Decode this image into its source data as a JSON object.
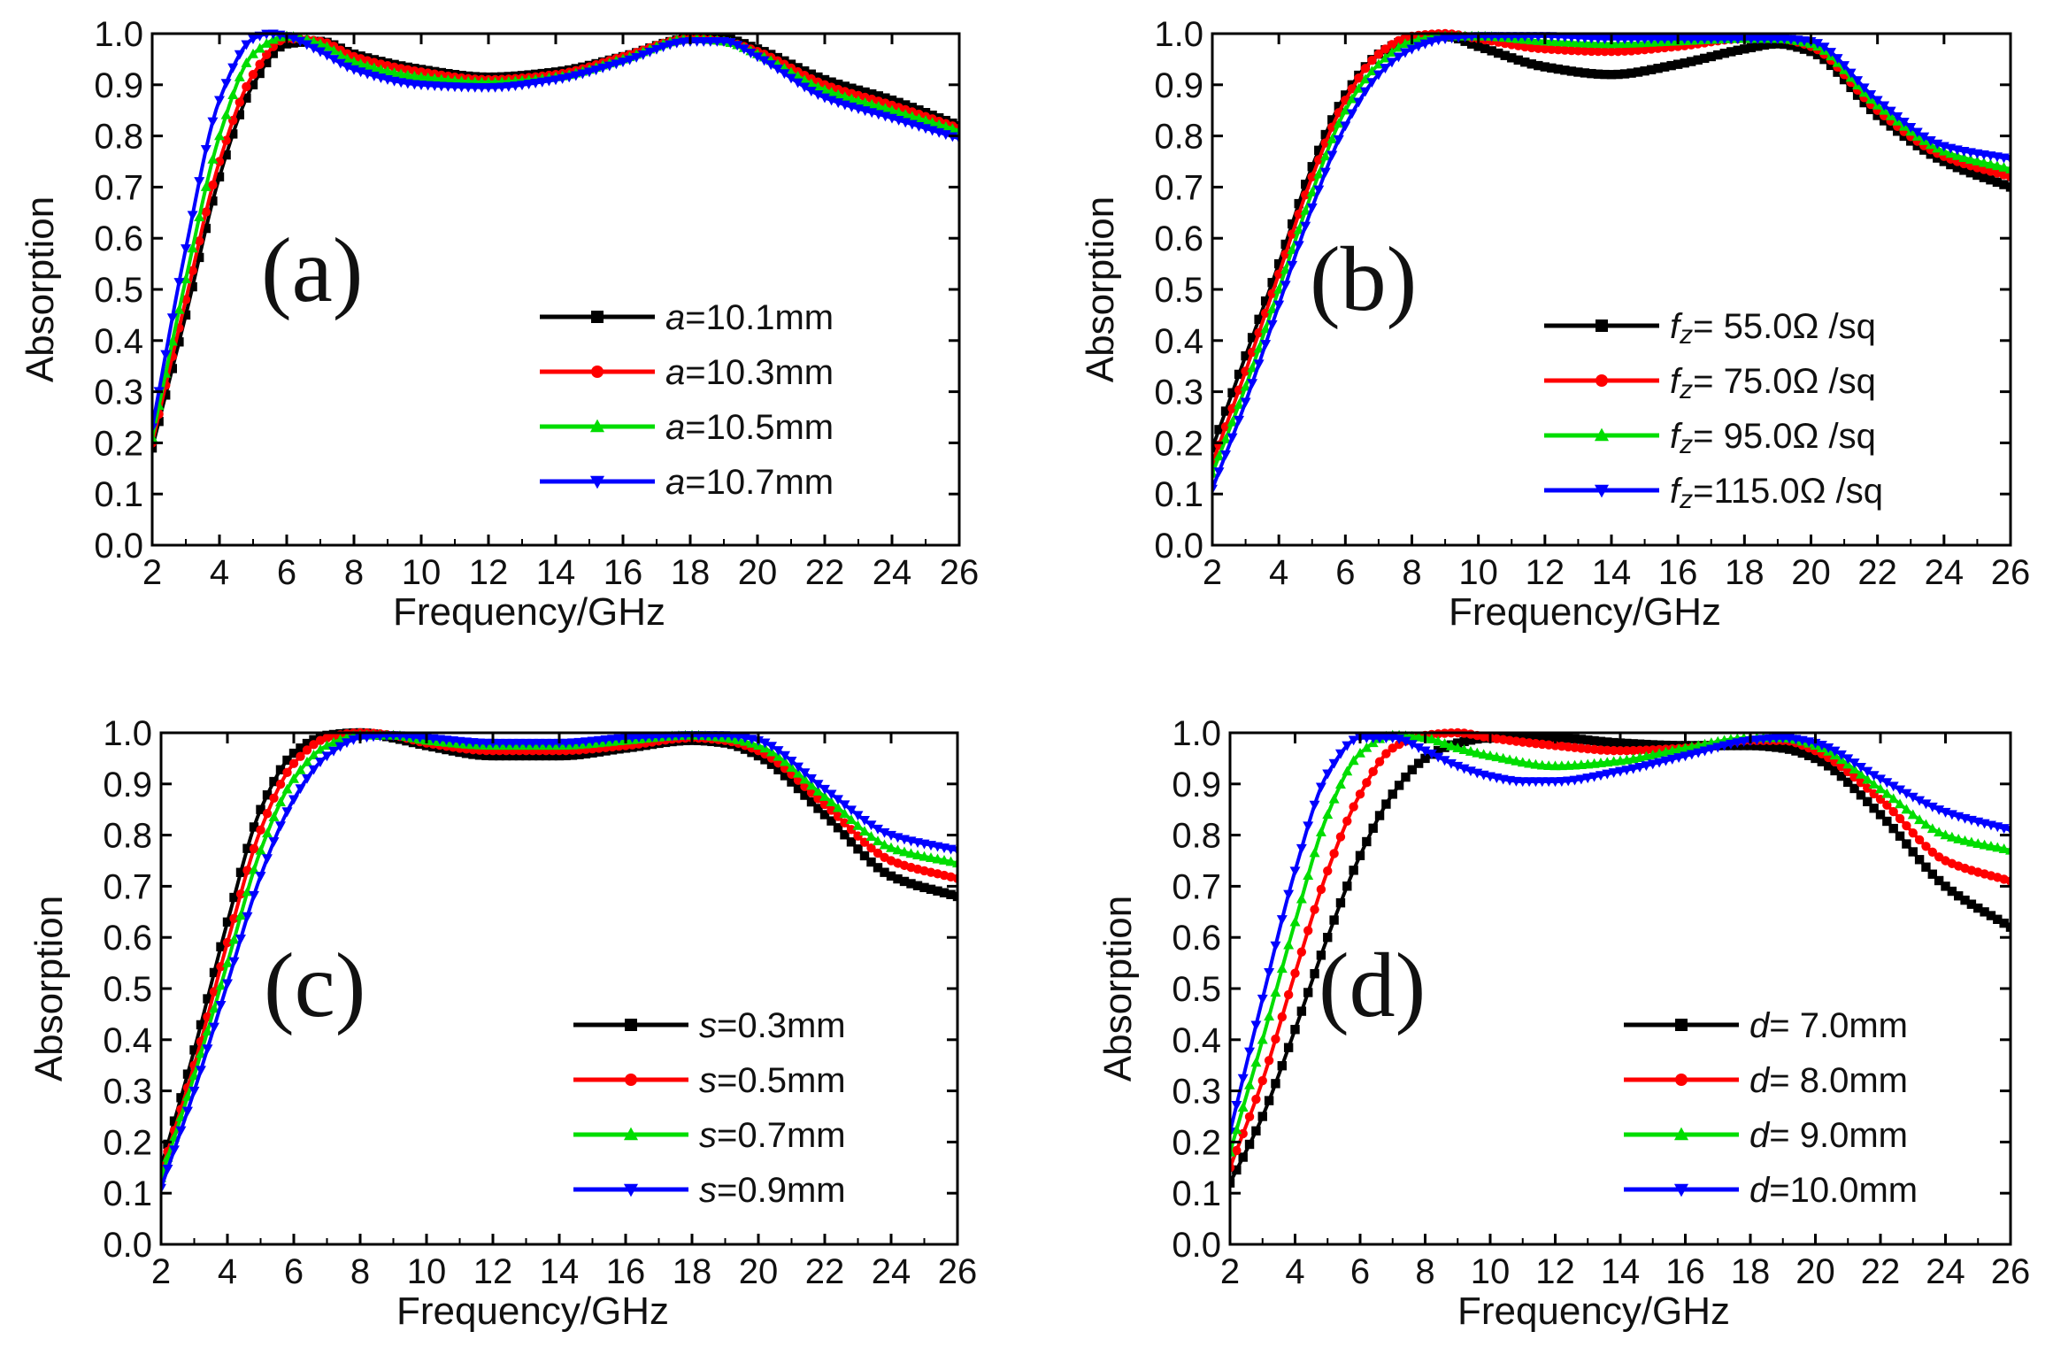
{
  "chart_data": [
    {
      "type": "line",
      "panel_label": "(a)",
      "xlabel": "Frequency/GHz",
      "ylabel": "Absorption",
      "xlim": [
        2,
        26
      ],
      "ylim": [
        0,
        1
      ],
      "xticks": [
        "2",
        "4",
        "6",
        "8",
        "10",
        "12",
        "14",
        "16",
        "18",
        "20",
        "22",
        "24",
        "26"
      ],
      "yticks": [
        "0.0",
        "0.1",
        "0.2",
        "0.3",
        "0.4",
        "0.5",
        "0.6",
        "0.7",
        "0.8",
        "0.9",
        "1.0"
      ],
      "legend_position": "center-right",
      "series": [
        {
          "name": "a=10.1mm",
          "param": "a",
          "value_text": "=10.1mm",
          "color": "#000000",
          "marker": "square",
          "x": [
            2,
            3,
            4,
            5,
            6,
            7,
            8,
            10,
            12,
            14,
            16,
            18,
            19,
            20,
            22,
            24,
            26
          ],
          "y": [
            0.19,
            0.45,
            0.72,
            0.9,
            0.98,
            0.985,
            0.96,
            0.93,
            0.915,
            0.925,
            0.955,
            0.99,
            0.99,
            0.97,
            0.91,
            0.87,
            0.82
          ]
        },
        {
          "name": "a=10.3mm",
          "param": "a",
          "value_text": "=10.3mm",
          "color": "#ff0000",
          "marker": "circle",
          "x": [
            2,
            3,
            4,
            5,
            6,
            7,
            8,
            10,
            12,
            14,
            16,
            18,
            19,
            20,
            22,
            24,
            26
          ],
          "y": [
            0.2,
            0.48,
            0.75,
            0.92,
            0.99,
            0.985,
            0.955,
            0.925,
            0.91,
            0.92,
            0.955,
            0.99,
            0.985,
            0.965,
            0.9,
            0.86,
            0.815
          ]
        },
        {
          "name": "a=10.5mm",
          "param": "a",
          "value_text": "=10.5mm",
          "color": "#00dd00",
          "marker": "triangle-up",
          "x": [
            2,
            3,
            4,
            5,
            6,
            7,
            8,
            10,
            12,
            14,
            16,
            18,
            19,
            20,
            22,
            24,
            26
          ],
          "y": [
            0.21,
            0.52,
            0.8,
            0.96,
            0.995,
            0.98,
            0.945,
            0.915,
            0.905,
            0.915,
            0.95,
            0.99,
            0.985,
            0.96,
            0.89,
            0.85,
            0.81
          ]
        },
        {
          "name": "a=10.7mm",
          "param": "a",
          "value_text": "=10.7mm",
          "color": "#0000ff",
          "marker": "triangle-down",
          "x": [
            2,
            3,
            4,
            5,
            5.5,
            6,
            7,
            8,
            10,
            12,
            14,
            16,
            18,
            19,
            20,
            22,
            24,
            26
          ],
          "y": [
            0.23,
            0.58,
            0.87,
            0.99,
            1.0,
            0.995,
            0.965,
            0.93,
            0.9,
            0.895,
            0.91,
            0.945,
            0.985,
            0.985,
            0.955,
            0.875,
            0.835,
            0.795
          ]
        }
      ]
    },
    {
      "type": "line",
      "panel_label": "(b)",
      "xlabel": "Frequency/GHz",
      "ylabel": "Absorption",
      "xlim": [
        2,
        26
      ],
      "ylim": [
        0,
        1
      ],
      "xticks": [
        "2",
        "4",
        "6",
        "8",
        "10",
        "12",
        "14",
        "16",
        "18",
        "20",
        "22",
        "24",
        "26"
      ],
      "yticks": [
        "0.0",
        "0.1",
        "0.2",
        "0.3",
        "0.4",
        "0.5",
        "0.6",
        "0.7",
        "0.8",
        "0.9",
        "1.0"
      ],
      "legend_position": "lower-right",
      "series": [
        {
          "name": "fz= 55.0Ω/sq",
          "param": "f",
          "param_sub": "z",
          "value_text": "= 55.0Ω /sq",
          "color": "#000000",
          "marker": "square",
          "x": [
            2,
            3,
            4,
            5,
            6,
            7,
            8,
            9,
            10,
            12,
            14,
            16,
            18,
            19,
            20,
            22,
            24,
            26
          ],
          "y": [
            0.19,
            0.37,
            0.55,
            0.74,
            0.88,
            0.96,
            0.99,
            0.995,
            0.975,
            0.935,
            0.92,
            0.94,
            0.97,
            0.98,
            0.965,
            0.84,
            0.75,
            0.7
          ]
        },
        {
          "name": "fz= 75.0Ω/sq",
          "param": "f",
          "param_sub": "z",
          "value_text": "= 75.0Ω /sq",
          "color": "#ff0000",
          "marker": "circle",
          "x": [
            2,
            3,
            4,
            5,
            6,
            7,
            8,
            9,
            10,
            12,
            14,
            16,
            18,
            19,
            20,
            22,
            24,
            26
          ],
          "y": [
            0.16,
            0.34,
            0.53,
            0.72,
            0.87,
            0.96,
            0.995,
            1.0,
            0.99,
            0.97,
            0.965,
            0.975,
            0.99,
            0.99,
            0.975,
            0.85,
            0.76,
            0.72
          ]
        },
        {
          "name": "fz= 95.0Ω/sq",
          "param": "f",
          "param_sub": "z",
          "value_text": "= 95.0Ω /sq",
          "color": "#00dd00",
          "marker": "triangle-up",
          "x": [
            2,
            3,
            4,
            5,
            6,
            7,
            8,
            9,
            10,
            12,
            14,
            16,
            18,
            19,
            20,
            22,
            24,
            26
          ],
          "y": [
            0.14,
            0.31,
            0.5,
            0.69,
            0.85,
            0.94,
            0.985,
            0.995,
            0.995,
            0.985,
            0.98,
            0.985,
            0.99,
            0.99,
            0.98,
            0.86,
            0.77,
            0.735
          ]
        },
        {
          "name": "fz=115.0Ω/sq",
          "param": "f",
          "param_sub": "z",
          "value_text": "=115.0Ω /sq",
          "color": "#0000ff",
          "marker": "triangle-down",
          "x": [
            2,
            3,
            4,
            5,
            6,
            7,
            8,
            9,
            10,
            12,
            14,
            16,
            18,
            19,
            20,
            22,
            24,
            26
          ],
          "y": [
            0.11,
            0.28,
            0.47,
            0.66,
            0.82,
            0.92,
            0.97,
            0.99,
            0.995,
            0.995,
            0.99,
            0.99,
            0.99,
            0.99,
            0.985,
            0.87,
            0.78,
            0.755
          ]
        }
      ]
    },
    {
      "type": "line",
      "panel_label": "(c)",
      "xlabel": "Frequency/GHz",
      "ylabel": "Absorption",
      "xlim": [
        2,
        26
      ],
      "ylim": [
        0,
        1
      ],
      "xticks": [
        "2",
        "4",
        "6",
        "8",
        "10",
        "12",
        "14",
        "16",
        "18",
        "20",
        "22",
        "24",
        "26"
      ],
      "yticks": [
        "0.0",
        "0.1",
        "0.2",
        "0.3",
        "0.4",
        "0.5",
        "0.6",
        "0.7",
        "0.8",
        "0.9",
        "1.0"
      ],
      "legend_position": "lower-right",
      "series": [
        {
          "name": "s=0.3mm",
          "param": "s",
          "value_text": "=0.3mm",
          "color": "#000000",
          "marker": "square",
          "x": [
            2,
            3,
            4,
            5,
            6,
            7,
            8,
            9,
            10,
            12,
            14,
            16,
            18,
            19,
            20,
            22,
            24,
            26
          ],
          "y": [
            0.15,
            0.38,
            0.63,
            0.85,
            0.96,
            0.995,
            1.0,
            0.99,
            0.975,
            0.955,
            0.955,
            0.97,
            0.985,
            0.98,
            0.955,
            0.84,
            0.72,
            0.68
          ]
        },
        {
          "name": "s=0.5mm",
          "param": "s",
          "value_text": "=0.5mm",
          "color": "#ff0000",
          "marker": "circle",
          "x": [
            2,
            3,
            4,
            5,
            6,
            7,
            8,
            9,
            10,
            12,
            14,
            16,
            18,
            19,
            20,
            22,
            24,
            26
          ],
          "y": [
            0.14,
            0.35,
            0.59,
            0.81,
            0.94,
            0.99,
            1.0,
            0.995,
            0.98,
            0.965,
            0.965,
            0.975,
            0.99,
            0.985,
            0.965,
            0.86,
            0.75,
            0.715
          ]
        },
        {
          "name": "s=0.7mm",
          "param": "s",
          "value_text": "=0.7mm",
          "color": "#00dd00",
          "marker": "triangle-up",
          "x": [
            2,
            3,
            4,
            5,
            6,
            7,
            8,
            9,
            10,
            12,
            14,
            16,
            18,
            19,
            20,
            22,
            24,
            26
          ],
          "y": [
            0.13,
            0.33,
            0.55,
            0.77,
            0.91,
            0.975,
            0.995,
            0.995,
            0.985,
            0.975,
            0.975,
            0.985,
            0.995,
            0.99,
            0.975,
            0.875,
            0.775,
            0.745
          ]
        },
        {
          "name": "s=0.9mm",
          "param": "s",
          "value_text": "=0.9mm",
          "color": "#0000ff",
          "marker": "triangle-down",
          "x": [
            2,
            3,
            4,
            5,
            6,
            7,
            8,
            9,
            10,
            12,
            14,
            16,
            18,
            19,
            20,
            22,
            24,
            26
          ],
          "y": [
            0.11,
            0.3,
            0.51,
            0.72,
            0.87,
            0.955,
            0.99,
            0.995,
            0.99,
            0.98,
            0.98,
            0.99,
            0.995,
            0.995,
            0.985,
            0.89,
            0.8,
            0.77
          ]
        }
      ]
    },
    {
      "type": "line",
      "panel_label": "(d)",
      "xlabel": "Frequency/GHz",
      "ylabel": "Absorption",
      "xlim": [
        2,
        26
      ],
      "ylim": [
        0,
        1
      ],
      "xticks": [
        "2",
        "4",
        "6",
        "8",
        "10",
        "12",
        "14",
        "16",
        "18",
        "20",
        "22",
        "24",
        "26"
      ],
      "yticks": [
        "0.0",
        "0.1",
        "0.2",
        "0.3",
        "0.4",
        "0.5",
        "0.6",
        "0.7",
        "0.8",
        "0.9",
        "1.0"
      ],
      "legend_position": "lower-right",
      "series": [
        {
          "name": "d= 7.0mm",
          "param": "d",
          "value_text": "= 7.0mm",
          "color": "#000000",
          "marker": "square",
          "x": [
            2,
            3,
            4,
            5,
            6,
            7,
            8,
            9,
            10,
            12,
            14,
            16,
            18,
            19,
            20,
            22,
            24,
            26
          ],
          "y": [
            0.12,
            0.25,
            0.42,
            0.6,
            0.76,
            0.88,
            0.95,
            0.98,
            0.99,
            0.99,
            0.98,
            0.975,
            0.975,
            0.97,
            0.95,
            0.84,
            0.7,
            0.62
          ]
        },
        {
          "name": "d= 8.0mm",
          "param": "d",
          "value_text": "= 8.0mm",
          "color": "#ff0000",
          "marker": "circle",
          "x": [
            2,
            3,
            4,
            5,
            6,
            7,
            8,
            9,
            10,
            12,
            14,
            16,
            18,
            19,
            20,
            22,
            24,
            26
          ],
          "y": [
            0.15,
            0.32,
            0.53,
            0.73,
            0.88,
            0.97,
            0.995,
            1.0,
            0.99,
            0.975,
            0.965,
            0.97,
            0.985,
            0.985,
            0.965,
            0.87,
            0.75,
            0.71
          ]
        },
        {
          "name": "d= 9.0mm",
          "param": "d",
          "value_text": "= 9.0mm",
          "color": "#00dd00",
          "marker": "triangle-up",
          "x": [
            2,
            3,
            4,
            5,
            6,
            7,
            8,
            9,
            10,
            12,
            14,
            16,
            18,
            19,
            20,
            22,
            24,
            26
          ],
          "y": [
            0.18,
            0.4,
            0.63,
            0.84,
            0.96,
            0.995,
            0.99,
            0.97,
            0.955,
            0.935,
            0.945,
            0.97,
            0.99,
            0.99,
            0.975,
            0.89,
            0.8,
            0.77
          ]
        },
        {
          "name": "d=10.0mm",
          "param": "d",
          "value_text": "=10.0mm",
          "color": "#0000ff",
          "marker": "triangle-down",
          "x": [
            2,
            3,
            4,
            5,
            6,
            7,
            8,
            9,
            10,
            11,
            12,
            14,
            16,
            18,
            19,
            20,
            22,
            24,
            26
          ],
          "y": [
            0.22,
            0.48,
            0.73,
            0.92,
            0.99,
            0.99,
            0.965,
            0.935,
            0.915,
            0.905,
            0.905,
            0.925,
            0.955,
            0.985,
            0.99,
            0.98,
            0.91,
            0.845,
            0.81
          ]
        }
      ]
    }
  ]
}
